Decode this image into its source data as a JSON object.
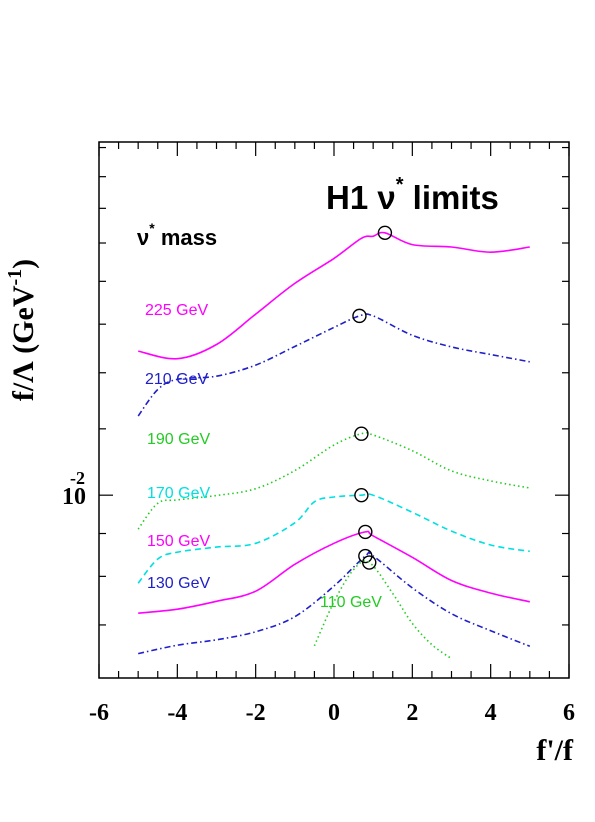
{
  "chart_data": {
    "type": "line",
    "title_main": "H1 ν",
    "title_sup": "*",
    "title_end": " limits",
    "legend_title_main": "ν",
    "legend_title_sup": "*",
    "legend_title_end": " mass",
    "xlabel": "f'/f",
    "ylabel_main": "f/Λ (GeV",
    "ylabel_sup": "-1",
    "ylabel_end": ")",
    "xlim": [
      -6,
      6
    ],
    "xticks": [
      "-6",
      "-4",
      "-2",
      "0",
      "2",
      "4",
      "6"
    ],
    "ytick_label_base": "10",
    "ytick_label_exp": "-2",
    "ytick_value": 0.01,
    "y_scale": "log",
    "ylim": [
      0.00605,
      0.0264
    ],
    "series": [
      {
        "name": "225 GeV",
        "color": "#ff00ff",
        "dash": "solid",
        "x": [
          -5,
          -4,
          -3,
          -2,
          -1,
          0,
          0.7,
          1.0,
          1.3,
          2,
          3,
          4,
          5
        ],
        "y": [
          0.01486,
          0.01455,
          0.01513,
          0.01645,
          0.0179,
          0.01917,
          0.02026,
          0.02038,
          0.02057,
          0.01991,
          0.01978,
          0.0195,
          0.01978
        ],
        "marker": {
          "x": 1.3,
          "y": 0.02057
        }
      },
      {
        "name": "210 GeV",
        "color": "#2020c8",
        "dash": "dashdot",
        "x": [
          -5,
          -4.5,
          -4,
          -3,
          -2,
          -1,
          0,
          0.65,
          1,
          2,
          3,
          4,
          5
        ],
        "y": [
          0.01243,
          0.01337,
          0.01375,
          0.01387,
          0.0143,
          0.01505,
          0.01586,
          0.01637,
          0.01637,
          0.01552,
          0.01503,
          0.01472,
          0.01443
        ],
        "marker": {
          "x": 0.65,
          "y": 0.01637
        }
      },
      {
        "name": "190 GeV",
        "color": "#22cc22",
        "dash": "dotted",
        "x": [
          -5,
          -4.5,
          -4,
          -3,
          -2,
          -1,
          0,
          0.7,
          1,
          2,
          3,
          4,
          5
        ],
        "y": [
          0.00911,
          0.00978,
          0.00987,
          0.00999,
          0.01018,
          0.0107,
          0.01148,
          0.01184,
          0.0118,
          0.0113,
          0.01069,
          0.0104,
          0.0102
        ],
        "marker": {
          "x": 0.7,
          "y": 0.01184
        }
      },
      {
        "name": "170 GeV",
        "color": "#00e0e0",
        "dash": "dashed",
        "x": [
          -5,
          -4.5,
          -4,
          -3,
          -2,
          -1,
          -0.5,
          0,
          0.7,
          1,
          2,
          3,
          4,
          5
        ],
        "y": [
          0.00785,
          0.00839,
          0.00855,
          0.00867,
          0.00876,
          0.00927,
          0.00982,
          0.00995,
          0.01,
          0.01,
          0.00954,
          0.00906,
          0.00872,
          0.00857
        ],
        "marker": {
          "x": 0.7,
          "y": 0.01
        }
      },
      {
        "name": "150 GeV",
        "color": "#ff00ff",
        "dash": "solid",
        "x": [
          -5,
          -4,
          -3,
          -2,
          -1,
          0,
          0.8,
          1,
          2,
          3,
          4,
          5
        ],
        "y": [
          0.00723,
          0.00731,
          0.00747,
          0.00768,
          0.00827,
          0.00876,
          0.00904,
          0.00894,
          0.00843,
          0.00791,
          0.00764,
          0.00746
        ],
        "marker": {
          "x": 0.8,
          "y": 0.00904
        }
      },
      {
        "name": "130 GeV",
        "color": "#2020c8",
        "dash": "dashdot",
        "x": [
          -5,
          -4,
          -3,
          -2,
          -1,
          0,
          0.8,
          1,
          2,
          3,
          4,
          5
        ],
        "y": [
          0.00647,
          0.00662,
          0.00672,
          0.00687,
          0.00716,
          0.00779,
          0.00846,
          0.00846,
          0.00775,
          0.00722,
          0.00689,
          0.0066
        ],
        "marker": {
          "x": 0.8,
          "y": 0.00846
        }
      },
      {
        "name": "110 GeV",
        "color": "#22cc22",
        "dash": "dotted",
        "x": [
          -0.5,
          0,
          0.5,
          0.9,
          1.5,
          2,
          2.5,
          3
        ],
        "y": [
          0.00661,
          0.00746,
          0.00815,
          0.00831,
          0.00763,
          0.00703,
          0.00663,
          0.00638
        ],
        "marker": {
          "x": 0.9,
          "y": 0.00831
        }
      }
    ]
  }
}
